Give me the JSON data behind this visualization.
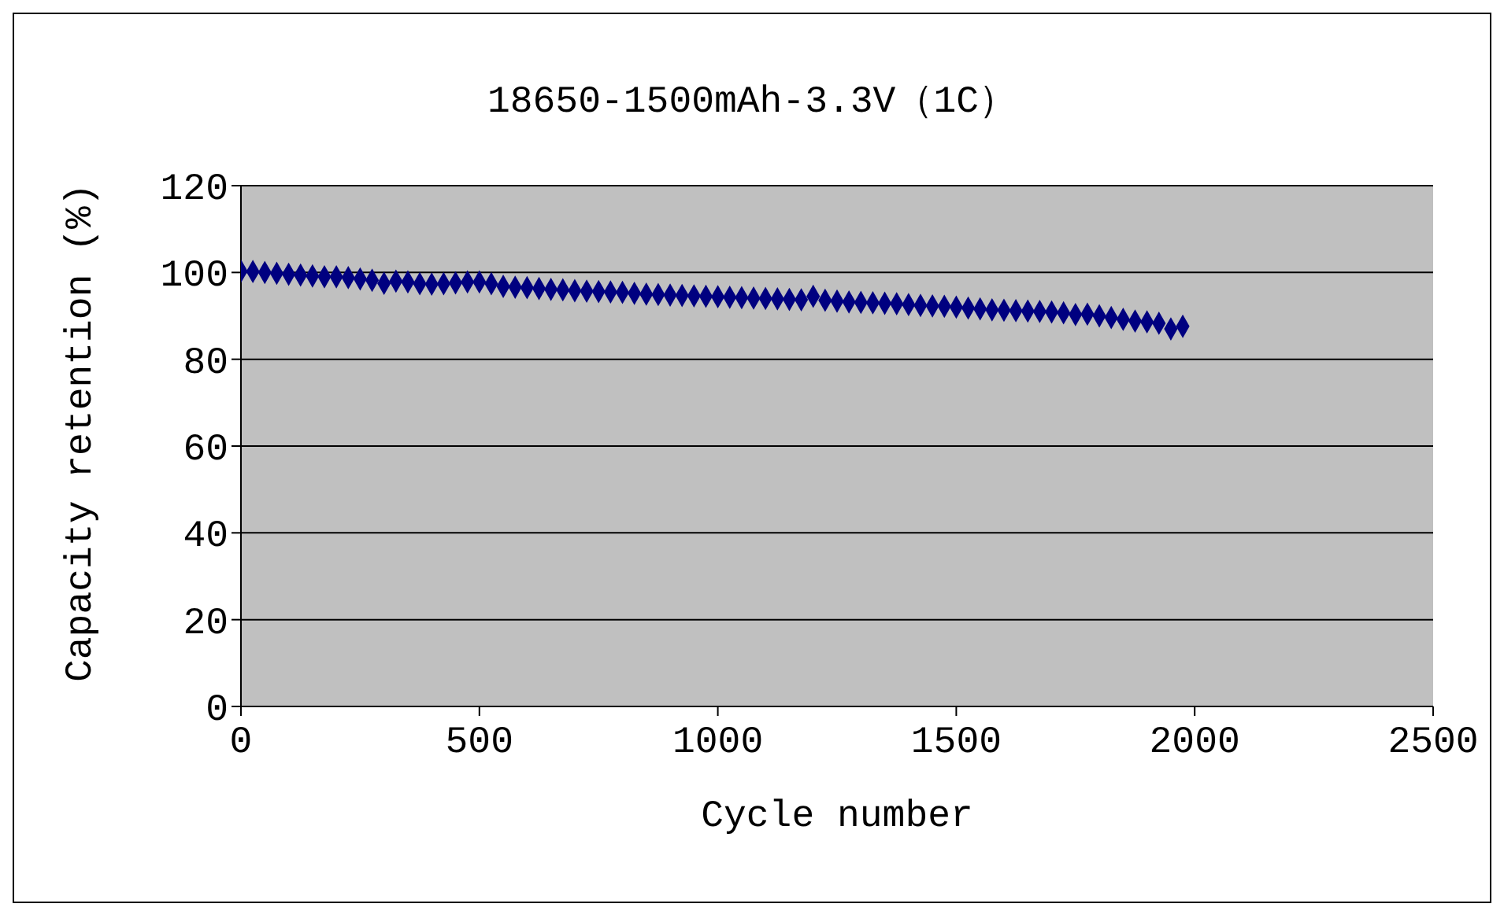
{
  "chart_data": {
    "type": "scatter",
    "title": "18650-1500mAh-3.3V（1C）",
    "xlabel": "Cycle number",
    "ylabel": "Capacity retention (%)",
    "x": [
      0,
      25,
      50,
      75,
      100,
      125,
      150,
      175,
      200,
      225,
      250,
      275,
      300,
      325,
      350,
      375,
      400,
      425,
      450,
      475,
      500,
      525,
      550,
      575,
      600,
      625,
      650,
      675,
      700,
      725,
      750,
      775,
      800,
      825,
      850,
      875,
      900,
      925,
      950,
      975,
      1000,
      1025,
      1050,
      1075,
      1100,
      1125,
      1150,
      1175,
      1200,
      1225,
      1250,
      1275,
      1300,
      1325,
      1350,
      1375,
      1400,
      1425,
      1450,
      1475,
      1500,
      1525,
      1550,
      1575,
      1600,
      1625,
      1650,
      1675,
      1700,
      1725,
      1750,
      1775,
      1800,
      1825,
      1850,
      1875,
      1900,
      1925,
      1950,
      1975
    ],
    "series": [
      {
        "color": "#000080",
        "values": [
          100.3,
          100.2,
          100,
          99.8,
          99.6,
          99.4,
          99.2,
          99,
          99,
          98.8,
          98.5,
          98.2,
          97.5,
          98,
          97.8,
          97.4,
          97.3,
          97.4,
          97.6,
          97.8,
          97.8,
          97.4,
          96.8,
          96.6,
          96.5,
          96.3,
          96.1,
          96,
          95.8,
          95.7,
          95.6,
          95.5,
          95.4,
          95.2,
          95,
          94.9,
          94.8,
          94.7,
          94.6,
          94.5,
          94.4,
          94.3,
          94.2,
          94.1,
          94,
          93.9,
          93.8,
          93.7,
          94.5,
          93.6,
          93.4,
          93.2,
          93.1,
          93,
          92.9,
          92.8,
          92.6,
          92.4,
          92.3,
          92.2,
          92,
          91.8,
          91.6,
          91.4,
          91.3,
          91.2,
          91.1,
          91,
          90.9,
          90.7,
          90.3,
          90.4,
          90,
          89.6,
          89.2,
          88.8,
          88.6,
          88.3,
          87,
          87.6
        ]
      }
    ],
    "xlim": [
      0,
      2500
    ],
    "xticks": [
      0,
      500,
      1000,
      1500,
      2000,
      2500
    ],
    "ylim": [
      0,
      120
    ],
    "yticks": [
      0,
      20,
      40,
      60,
      80,
      100,
      120
    ],
    "grid": "y",
    "marker": "diamond",
    "legend": false
  }
}
